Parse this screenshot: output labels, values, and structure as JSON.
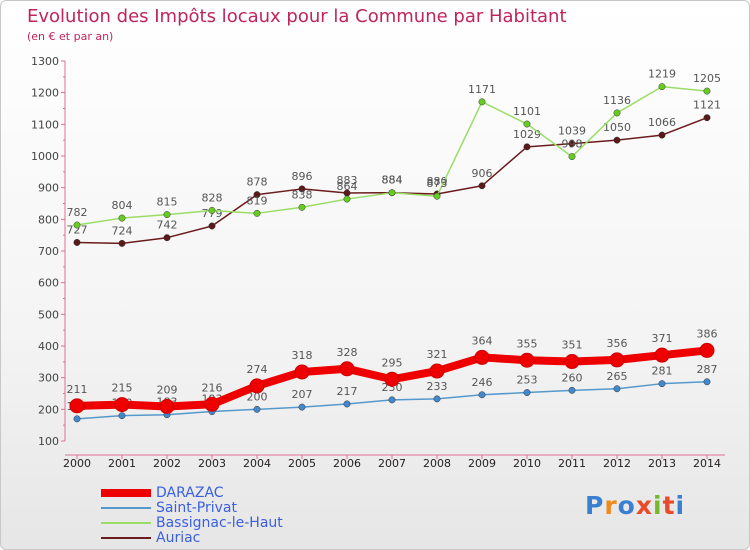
{
  "title": "Evolution des Impôts locaux pour la Commune par Habitant",
  "subtitle": "(en € et par an)",
  "logo_text": "Proxiti",
  "chart_data": {
    "type": "line",
    "categories": [
      "2000",
      "2001",
      "2002",
      "2003",
      "2004",
      "2005",
      "2006",
      "2007",
      "2008",
      "2009",
      "2010",
      "2011",
      "2012",
      "2013",
      "2014"
    ],
    "ylim": [
      100,
      1300
    ],
    "yticks": [
      100,
      200,
      300,
      400,
      500,
      600,
      700,
      800,
      900,
      1000,
      1100,
      1200,
      1300
    ],
    "grid": false,
    "legend_position": "bottom-left",
    "series": [
      {
        "name": "Auriac",
        "color": "#6b1b1b",
        "marker": "#5a1a1a",
        "values": [
          727,
          724,
          742,
          779,
          878,
          896,
          883,
          884,
          880,
          906,
          1029,
          1039,
          1050,
          1066,
          1121
        ],
        "labels": [
          "727",
          "724",
          "742",
          "779",
          "878",
          "896",
          "883",
          "884",
          "880",
          "906",
          "1029",
          "1039",
          "1050",
          "1066",
          "1121"
        ]
      },
      {
        "name": "Bassignac-le-Haut",
        "color": "#99dd66",
        "marker": "#66cc22",
        "values": [
          782,
          804,
          815,
          828,
          819,
          838,
          864,
          884,
          873,
          1171,
          1101,
          998,
          1136,
          1219,
          1205
        ],
        "labels": [
          "782",
          "804",
          "815",
          "828",
          "819",
          "838",
          "864",
          "884",
          "873",
          "1171",
          "1101",
          "998",
          "1136",
          "1219",
          "1205"
        ]
      },
      {
        "name": "Saint-Privat",
        "color": "#5599cc",
        "marker": "#4488cc",
        "values": [
          170,
          180,
          183,
          193,
          200,
          207,
          217,
          230,
          233,
          246,
          253,
          260,
          265,
          281,
          287
        ],
        "labels": [
          "170",
          "180",
          "183",
          "193",
          "200",
          "207",
          "217",
          "230",
          "233",
          "246",
          "253",
          "260",
          "265",
          "281",
          "287"
        ]
      },
      {
        "name": "DARAZAC",
        "color": "#ee0000",
        "marker": "#ee0000",
        "values": [
          211,
          215,
          209,
          216,
          274,
          318,
          328,
          295,
          321,
          364,
          355,
          351,
          356,
          371,
          386
        ],
        "labels": [
          "211",
          "215",
          "209",
          "216",
          "274",
          "318",
          "328",
          "295",
          "321",
          "364",
          "355",
          "351",
          "356",
          "371",
          "386"
        ]
      }
    ],
    "legend": [
      "DARAZAC",
      "Saint-Privat",
      "Bassignac-le-Haut",
      "Auriac"
    ]
  }
}
